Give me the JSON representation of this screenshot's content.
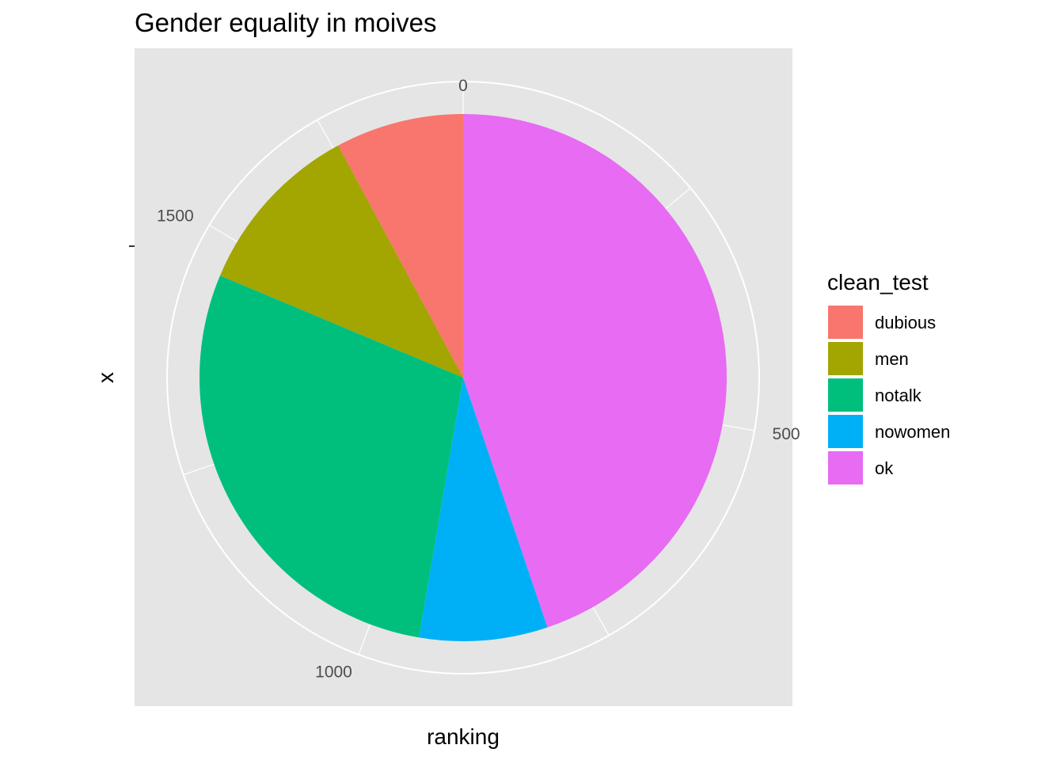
{
  "chart_data": {
    "type": "pie",
    "title": "Gender equality in moives",
    "xlabel": "ranking",
    "ylabel": "x",
    "theta_axis": {
      "range": [
        0,
        1794
      ],
      "ticks": [
        0,
        500,
        1000,
        1500
      ]
    },
    "legend": {
      "title": "clean_test",
      "position": "right"
    },
    "slices": [
      {
        "label": "dubious",
        "value": 141,
        "color": "#F8766D"
      },
      {
        "label": "men",
        "value": 194,
        "color": "#A3A500"
      },
      {
        "label": "notalk",
        "value": 514,
        "color": "#00BF7D"
      },
      {
        "label": "nowomen",
        "value": 141,
        "color": "#00B0F6"
      },
      {
        "label": "ok",
        "value": 804,
        "color": "#E76BF3"
      }
    ],
    "panel_background": "#E5E5E5",
    "grid_color": "#FFFFFF",
    "grid": true
  }
}
